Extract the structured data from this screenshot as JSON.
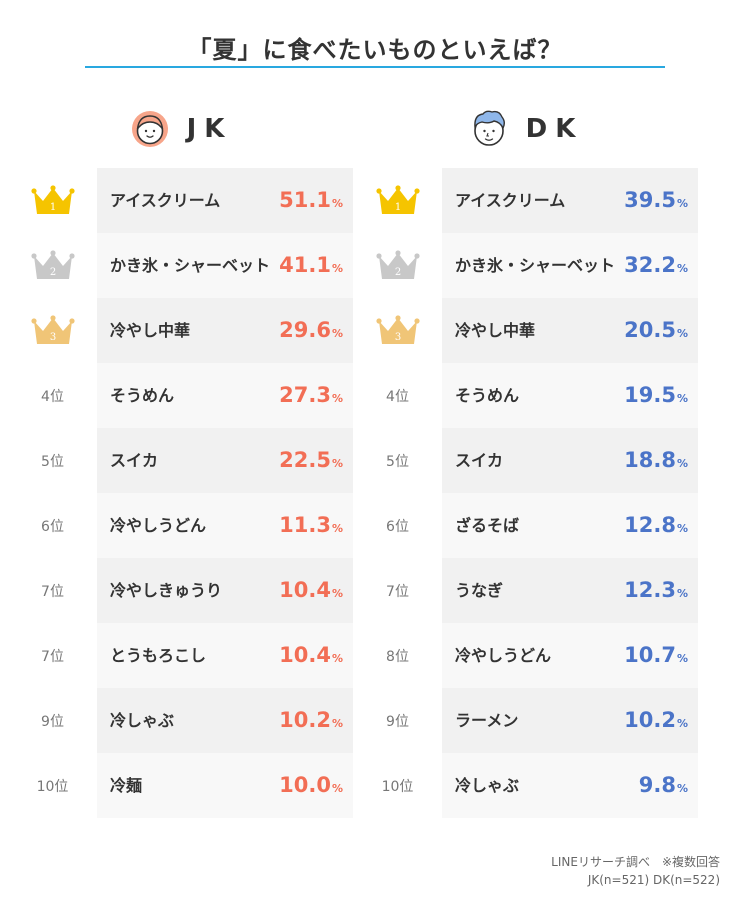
{
  "title": "「夏」に食べたいものといえば？",
  "colors": {
    "jk": "#f26e55",
    "dk": "#4b74c8",
    "gold": "#f5c400",
    "silver": "#c8c8c8",
    "bronze": "#f0c577",
    "title_line": "#29a8e0"
  },
  "chart_data": [
    {
      "type": "table",
      "group": "JK",
      "unit": "%",
      "rows": [
        {
          "rank": "1",
          "crown": "gold",
          "item": "アイスクリーム",
          "value": 51.1
        },
        {
          "rank": "2",
          "crown": "silver",
          "item": "かき氷・シャーベット",
          "value": 41.1
        },
        {
          "rank": "3",
          "crown": "bronze",
          "item": "冷やし中華",
          "value": 29.6
        },
        {
          "rank": "4位",
          "crown": "",
          "item": "そうめん",
          "value": 27.3
        },
        {
          "rank": "5位",
          "crown": "",
          "item": "スイカ",
          "value": 22.5
        },
        {
          "rank": "6位",
          "crown": "",
          "item": "冷やしうどん",
          "value": 11.3
        },
        {
          "rank": "7位",
          "crown": "",
          "item": "冷やしきゅうり",
          "value": 10.4
        },
        {
          "rank": "7位",
          "crown": "",
          "item": "とうもろこし",
          "value": 10.4
        },
        {
          "rank": "9位",
          "crown": "",
          "item": "冷しゃぶ",
          "value": 10.2
        },
        {
          "rank": "10位",
          "crown": "",
          "item": "冷麺",
          "value": 10.0
        }
      ]
    },
    {
      "type": "table",
      "group": "DK",
      "unit": "%",
      "rows": [
        {
          "rank": "1",
          "crown": "gold",
          "item": "アイスクリーム",
          "value": 39.5
        },
        {
          "rank": "2",
          "crown": "silver",
          "item": "かき氷・シャーベット",
          "value": 32.2
        },
        {
          "rank": "3",
          "crown": "bronze",
          "item": "冷やし中華",
          "value": 20.5
        },
        {
          "rank": "4位",
          "crown": "",
          "item": "そうめん",
          "value": 19.5
        },
        {
          "rank": "5位",
          "crown": "",
          "item": "スイカ",
          "value": 18.8
        },
        {
          "rank": "6位",
          "crown": "",
          "item": "ざるそば",
          "value": 12.8
        },
        {
          "rank": "7位",
          "crown": "",
          "item": "うなぎ",
          "value": 12.3
        },
        {
          "rank": "8位",
          "crown": "",
          "item": "冷やしうどん",
          "value": 10.7
        },
        {
          "rank": "9位",
          "crown": "",
          "item": "ラーメン",
          "value": 10.2
        },
        {
          "rank": "10位",
          "crown": "",
          "item": "冷しゃぶ",
          "value": 9.8
        }
      ]
    }
  ],
  "footer": {
    "line1": "LINEリサーチ調べ　※複数回答",
    "line2": "JK(n=521) DK(n=522)"
  }
}
